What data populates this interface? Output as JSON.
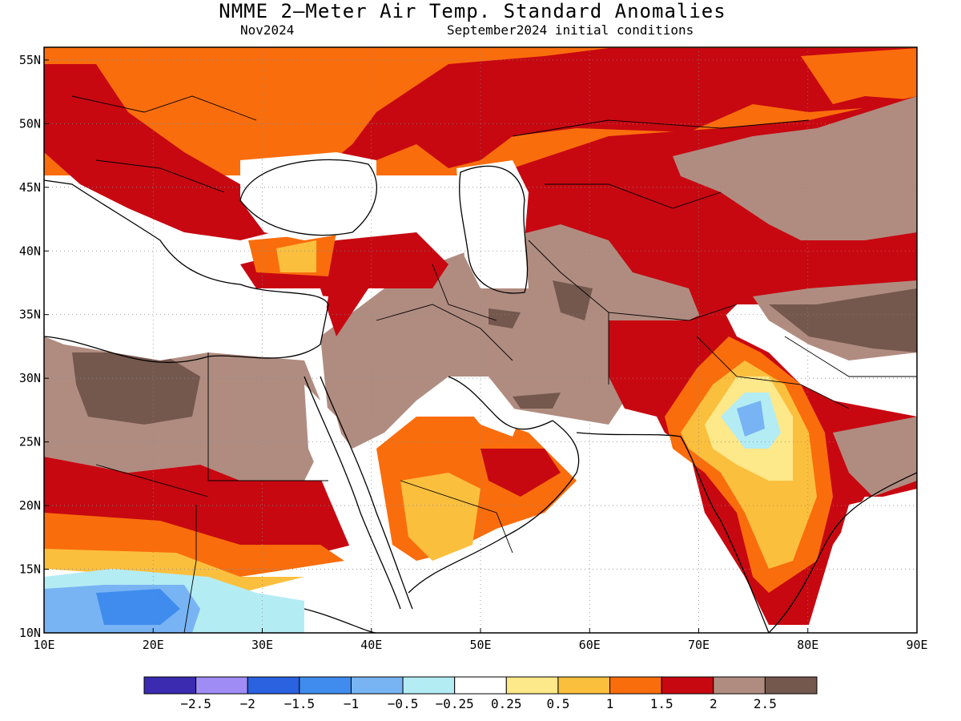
{
  "title": "NMME 2–Meter Air Temp. Standard Anomalies",
  "valid_month": "Nov2024",
  "initial_conditions": "September2024 initial conditions",
  "map": {
    "lon_range": [
      10,
      90
    ],
    "lat_range": [
      10,
      56
    ],
    "lon_ticks": [
      "10E",
      "20E",
      "30E",
      "40E",
      "50E",
      "60E",
      "70E",
      "80E",
      "90E"
    ],
    "lat_ticks": [
      "10N",
      "15N",
      "20N",
      "25N",
      "30N",
      "35N",
      "40N",
      "45N",
      "50N",
      "55N"
    ],
    "grid": true
  },
  "colorbar": {
    "colors": [
      "#3a2bb0",
      "#9f8cf5",
      "#2a62e0",
      "#3f8cee",
      "#78b4f4",
      "#b4ecf4",
      "#ffffff",
      "#fde88a",
      "#fbbf3e",
      "#fa6d0c",
      "#c70811",
      "#b08c80",
      "#74574d"
    ],
    "tick_labels": [
      "−2.5",
      "−2",
      "−1.5",
      "−1",
      "−0.5",
      "−0.25",
      "0.25",
      "0.5",
      "1",
      "1.5",
      "2",
      "2.5"
    ]
  },
  "regions": [
    {
      "name": "europe-north",
      "color": "#fa6d0c"
    },
    {
      "name": "eastern-europe",
      "color": "#c70811"
    },
    {
      "name": "central-asia",
      "color": "#c70811"
    },
    {
      "name": "middle-east",
      "color": "#b08c80"
    },
    {
      "name": "sahara",
      "color": "#b08c80"
    },
    {
      "name": "arabia-south",
      "color": "#fa6d0c"
    },
    {
      "name": "india-west",
      "color": "#fbbf3e"
    },
    {
      "name": "sahel",
      "color": "#c70811"
    },
    {
      "name": "east-africa-cool",
      "color": "#78b4f4"
    }
  ]
}
